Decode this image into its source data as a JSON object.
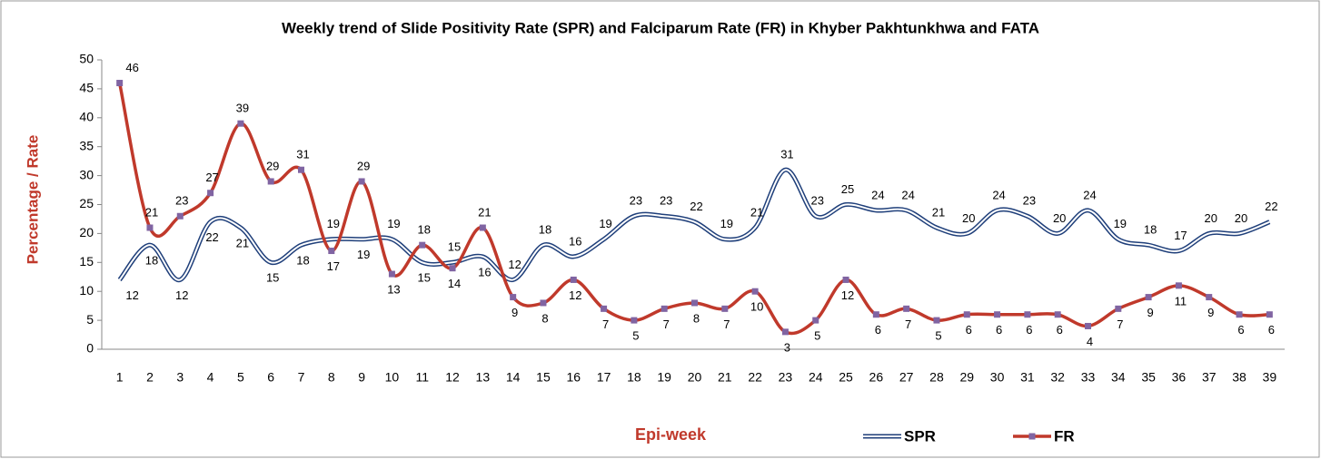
{
  "chart_data": {
    "type": "line",
    "title": "Weekly trend of Slide Positivity Rate (SPR) and Falciparum Rate (FR) in Khyber Pakhtunkhwa and FATA",
    "x_label": "Epi-week",
    "y_label": "Percentage / Rate",
    "categories": [
      "1",
      "2",
      "3",
      "4",
      "5",
      "6",
      "7",
      "8",
      "9",
      "10",
      "11",
      "12",
      "13",
      "14",
      "15",
      "16",
      "17",
      "18",
      "19",
      "20",
      "21",
      "22",
      "23",
      "24",
      "25",
      "26",
      "27",
      "28",
      "29",
      "30",
      "31",
      "32",
      "33",
      "34",
      "35",
      "36",
      "37",
      "38",
      "39"
    ],
    "series": [
      {
        "name": "SPR",
        "color": "#1f3f7a",
        "values": [
          12,
          18,
          12,
          22,
          21,
          15,
          18,
          19,
          19,
          19,
          15,
          15,
          16,
          12,
          18,
          16,
          19,
          23,
          23,
          22,
          19,
          21,
          31,
          23,
          25,
          24,
          24,
          21,
          20,
          24,
          23,
          20,
          24,
          19,
          18,
          17,
          20,
          20,
          22
        ]
      },
      {
        "name": "FR",
        "color": "#c0392b",
        "marker_color": "#8064a2",
        "values": [
          46,
          21,
          23,
          27,
          39,
          29,
          31,
          17,
          29,
          13,
          18,
          14,
          21,
          9,
          8,
          12,
          7,
          5,
          7,
          8,
          7,
          10,
          3,
          5,
          12,
          6,
          7,
          5,
          6,
          6,
          6,
          6,
          4,
          7,
          9,
          11,
          9,
          6,
          6
        ]
      }
    ],
    "ylim": [
      0,
      50
    ],
    "yticks": [
      0,
      5,
      10,
      15,
      20,
      25,
      30,
      35,
      40,
      45,
      50
    ],
    "grid": false,
    "smooth": true,
    "legend": "bottom-right"
  }
}
